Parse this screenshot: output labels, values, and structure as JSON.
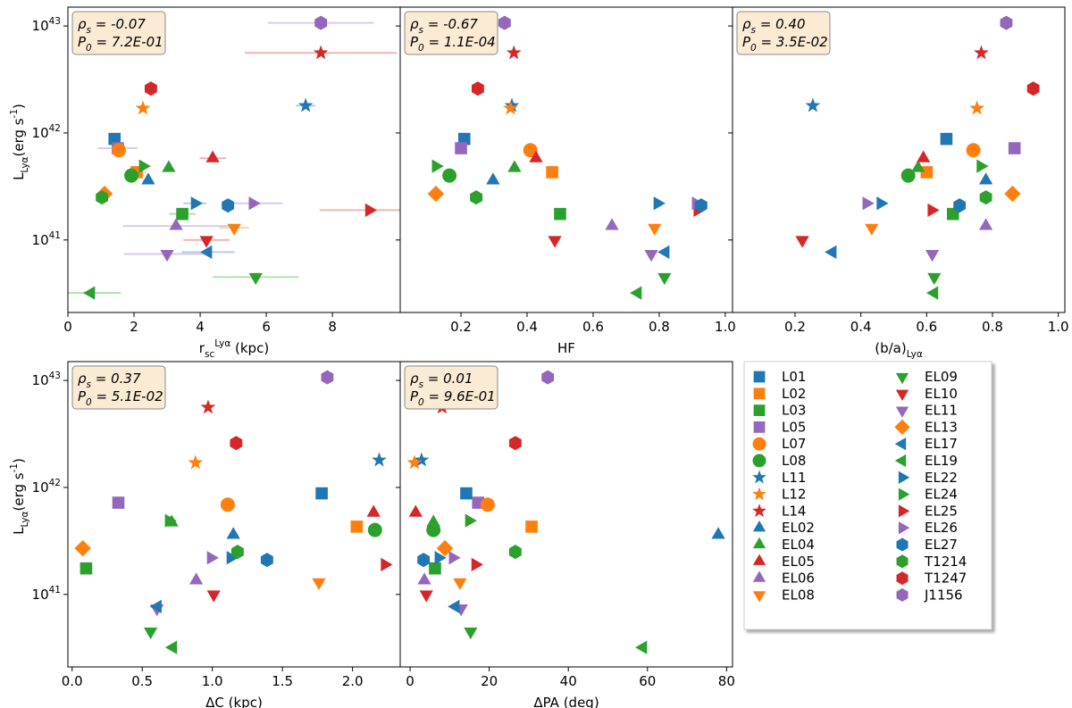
{
  "legend": {
    "names": [
      "L01",
      "L02",
      "L03",
      "L05",
      "L07",
      "L08",
      "L11",
      "L12",
      "L14",
      "EL02",
      "EL04",
      "EL05",
      "EL06",
      "EL08",
      "EL09",
      "EL10",
      "EL11",
      "EL13",
      "EL17",
      "EL19",
      "EL22",
      "EL24",
      "EL25",
      "EL26",
      "EL27",
      "T1214",
      "T1247",
      "J1156"
    ],
    "colors": [
      "#1f77b4",
      "#ff7f0e",
      "#2ca02c",
      "#9467bd",
      "#ff7f0e",
      "#2ca02c",
      "#1f77b4",
      "#ff7f0e",
      "#d62728",
      "#1f77b4",
      "#2ca02c",
      "#d62728",
      "#9467bd",
      "#ff7f0e",
      "#2ca02c",
      "#d62728",
      "#9467bd",
      "#ff7f0e",
      "#1f77b4",
      "#2ca02c",
      "#1f77b4",
      "#2ca02c",
      "#d62728",
      "#9467bd",
      "#1f77b4",
      "#2ca02c",
      "#d62728",
      "#9467bd"
    ],
    "markers": [
      "s",
      "s",
      "s",
      "s",
      "o",
      "o",
      "*",
      "*",
      "*",
      "^",
      "^",
      "^",
      "^",
      "v",
      "v",
      "v",
      "v",
      "D",
      "<",
      "<",
      ">",
      ">",
      ">",
      ">",
      "h",
      "h",
      "h",
      "h"
    ]
  },
  "chart_data": [
    {
      "type": "scatter",
      "xlabel": "r_{sc}^{Lyα} (kpc)",
      "ylabel": "L_{Lyα}(erg s^{-1})",
      "annotation": [
        "ρ_{s} = -0.07",
        "P_{0} = 7.2E-01"
      ],
      "log_y": true,
      "xlim": [
        0,
        10.05
      ],
      "xticks": [
        0,
        2,
        4,
        6,
        8
      ],
      "ylim": [
        2.1e+40,
        1.5e+43
      ],
      "yticks": [
        {
          "value": 1e+41,
          "label": "10^{41}"
        },
        {
          "value": 1e+42,
          "label": "10^{42}"
        },
        {
          "value": 1e+43,
          "label": "10^{43}"
        }
      ],
      "x": [
        1.41,
        2.08,
        3.46,
        1.51,
        1.54,
        1.92,
        7.19,
        2.27,
        7.65,
        2.43,
        3.05,
        4.38,
        3.27,
        5.03,
        5.68,
        4.19,
        3.0,
        1.11,
        4.24,
        0.7,
        3.84,
        2.27,
        9.11,
        5.59,
        4.84,
        1.03,
        2.51,
        7.65
      ],
      "xerr": [
        0.1,
        0.3,
        0.4,
        0.6,
        0.1,
        0.1,
        0.3,
        0.1,
        2.3,
        0.1,
        0.1,
        0.4,
        1.6,
        0.45,
        1.3,
        0.7,
        1.3,
        0.1,
        0.8,
        0.9,
        0.35,
        0.1,
        1.5,
        0.9,
        0.1,
        0.1,
        0.1,
        1.6
      ],
      "values": [
        8.8e+41,
        4.3e+41,
        1.75e+41,
        7.2e+41,
        6.9e+41,
        4e+41,
        1.8e+42,
        1.7e+42,
        5.6e+42,
        3.6e+41,
        4.7e+41,
        5.8e+41,
        1.35e+41,
        1.3e+41,
        4.5e+40,
        1e+41,
        7.4e+40,
        2.7e+41,
        7.7e+40,
        3.2e+40,
        2.2e+41,
        4.9e+41,
        1.9e+41,
        2.2e+41,
        2.1e+41,
        2.5e+41,
        2.6e+42,
        1.07e+43
      ]
    },
    {
      "type": "scatter",
      "xlabel": "HF",
      "annotation": [
        "ρ_{s} = -0.67",
        "P_{0} = 1.1E-04"
      ],
      "log_y": true,
      "xlim": [
        0.016,
        1.022
      ],
      "xticks": [
        0.2,
        0.4,
        0.6,
        0.8,
        {
          "value": 1.0,
          "label": "1.0"
        }
      ],
      "ylim": [
        2.1e+40,
        1.5e+43
      ],
      "yticks": [
        1e+41,
        1e+42,
        1e+43
      ],
      "x": [
        0.21,
        0.476,
        0.5,
        0.2,
        0.41,
        0.165,
        0.354,
        0.35,
        0.36,
        0.297,
        0.362,
        0.427,
        0.657,
        0.786,
        0.816,
        0.484,
        0.776,
        0.124,
        0.819,
        0.735,
        0.795,
        0.124,
        0.916,
        0.911,
        0.927,
        0.246,
        0.251,
        0.332
      ],
      "values": [
        8.8e+41,
        4.3e+41,
        1.75e+41,
        7.2e+41,
        6.9e+41,
        4e+41,
        1.8e+42,
        1.7e+42,
        5.6e+42,
        3.6e+41,
        4.7e+41,
        5.8e+41,
        1.35e+41,
        1.3e+41,
        4.5e+40,
        1e+41,
        7.4e+40,
        2.7e+41,
        7.7e+40,
        3.2e+40,
        2.2e+41,
        4.9e+41,
        1.9e+41,
        2.2e+41,
        2.1e+41,
        2.5e+41,
        2.6e+42,
        1.07e+43
      ]
    },
    {
      "type": "scatter",
      "xlabel": "(b/a)_{Lyα}",
      "annotation": [
        "ρ_{s} = 0.40",
        "P_{0} = 3.5E-02"
      ],
      "log_y": true,
      "xlim": [
        0.01,
        1.02
      ],
      "xticks": [
        0.2,
        0.4,
        0.6,
        0.8,
        {
          "value": 1.0,
          "label": "1.0"
        }
      ],
      "ylim": [
        2.1e+40,
        1.5e+43
      ],
      "yticks": [
        1e+41,
        1e+42,
        1e+43
      ],
      "x": [
        0.66,
        0.6,
        0.68,
        0.867,
        0.742,
        0.544,
        0.254,
        0.753,
        0.766,
        0.78,
        0.574,
        0.59,
        0.78,
        0.433,
        0.623,
        0.222,
        0.617,
        0.861,
        0.314,
        0.623,
        0.46,
        0.764,
        0.615,
        0.417,
        0.7,
        0.78,
        0.924,
        0.842
      ],
      "values": [
        8.8e+41,
        4.3e+41,
        1.75e+41,
        7.2e+41,
        6.9e+41,
        4e+41,
        1.8e+42,
        1.7e+42,
        5.6e+42,
        3.6e+41,
        4.7e+41,
        5.8e+41,
        1.35e+41,
        1.3e+41,
        4.5e+40,
        1e+41,
        7.4e+40,
        2.7e+41,
        7.7e+40,
        3.2e+40,
        2.2e+41,
        4.9e+41,
        1.9e+41,
        2.2e+41,
        2.1e+41,
        2.5e+41,
        2.6e+42,
        1.07e+43
      ]
    },
    {
      "type": "scatter",
      "xlabel": "ΔC (kpc)",
      "ylabel": "L_{Lyα}(erg s^{-1})",
      "annotation": [
        "ρ_{s} = 0.37",
        "P_{0} = 5.1E-02"
      ],
      "log_y": true,
      "xlim": [
        -0.03,
        2.34
      ],
      "xticks": [
        {
          "value": 0,
          "label": "0.0"
        },
        0.5,
        {
          "value": 1,
          "label": "1.0"
        },
        1.5,
        {
          "value": 2,
          "label": "2.0"
        }
      ],
      "ylim": [
        2.1e+40,
        1.5e+43
      ],
      "yticks": [
        {
          "value": 1e+41,
          "label": "10^{41}"
        },
        {
          "value": 1e+42,
          "label": "10^{42}"
        },
        {
          "value": 1e+43,
          "label": "10^{43}"
        }
      ],
      "x": [
        1.78,
        2.03,
        0.1,
        0.33,
        1.11,
        2.16,
        2.19,
        0.88,
        0.97,
        1.15,
        0.71,
        2.15,
        0.885,
        1.76,
        0.56,
        1.01,
        0.605,
        0.076,
        0.61,
        0.72,
        1.13,
        0.69,
        2.23,
        0.99,
        1.39,
        1.18,
        1.17,
        1.82
      ],
      "values": [
        8.8e+41,
        4.3e+41,
        1.75e+41,
        7.2e+41,
        6.9e+41,
        4e+41,
        1.8e+42,
        1.7e+42,
        5.6e+42,
        3.6e+41,
        4.7e+41,
        5.8e+41,
        1.35e+41,
        1.3e+41,
        4.5e+40,
        1e+41,
        7.4e+40,
        2.7e+41,
        7.7e+40,
        3.2e+40,
        2.2e+41,
        4.9e+41,
        1.9e+41,
        2.2e+41,
        2.1e+41,
        2.5e+41,
        2.6e+42,
        1.07e+43
      ]
    },
    {
      "type": "scatter",
      "xlabel": "ΔPA (deg)",
      "annotation": [
        "ρ_{s} = 0.01",
        "P_{0} = 9.6E-01"
      ],
      "log_y": true,
      "xlim": [
        -2.5,
        81.5
      ],
      "xticks": [
        0,
        20,
        40,
        60,
        80
      ],
      "ylim": [
        2.1e+40,
        1.5e+43
      ],
      "yticks": [
        1e+41,
        1e+42,
        1e+43
      ],
      "x": [
        14.2,
        30.7,
        6.3,
        17.2,
        19.6,
        5.9,
        2.9,
        1.1,
        8.1,
        77.9,
        5.9,
        1.4,
        3.6,
        12.6,
        15.3,
        4.1,
        12.9,
        8.8,
        11.5,
        58.9,
        7.2,
        14.9,
        16.5,
        10.8,
        3.4,
        26.6,
        26.6,
        34.8
      ],
      "values": [
        8.8e+41,
        4.3e+41,
        1.75e+41,
        7.2e+41,
        6.9e+41,
        4e+41,
        1.8e+42,
        1.7e+42,
        5.6e+42,
        3.6e+41,
        4.7e+41,
        5.8e+41,
        1.35e+41,
        1.3e+41,
        4.5e+40,
        1e+41,
        7.4e+40,
        2.7e+41,
        7.7e+40,
        3.2e+40,
        2.2e+41,
        4.9e+41,
        1.9e+41,
        2.2e+41,
        2.1e+41,
        2.5e+41,
        2.6e+42,
        1.07e+43
      ]
    }
  ]
}
